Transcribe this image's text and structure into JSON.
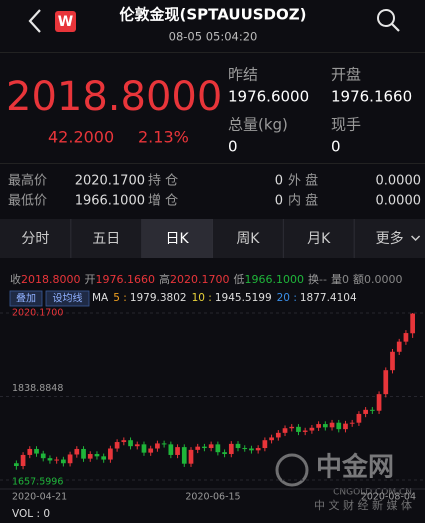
{
  "header": {
    "title": "伦敦金现(SPTAUUSDOZ)",
    "time": "08-05 05:04:20",
    "logo": "W"
  },
  "quote": {
    "price": "2018.8000",
    "change": "42.2000",
    "change_pct": "2.13%"
  },
  "summary": [
    {
      "label": "昨结",
      "value": "1976.6000"
    },
    {
      "label": "开盘",
      "value": "1976.1660"
    },
    {
      "label": "总量(kg)",
      "value": "0"
    },
    {
      "label": "现手",
      "value": "0"
    }
  ],
  "stats": [
    [
      {
        "label": "最高价",
        "value": "2020.1700"
      },
      {
        "label": "持 仓",
        "value": "0"
      },
      {
        "label": "外 盘",
        "value": "0.0000"
      }
    ],
    [
      {
        "label": "最低价",
        "value": "1966.1000"
      },
      {
        "label": "增 仓",
        "value": "0"
      },
      {
        "label": "内 盘",
        "value": "0.0000"
      }
    ]
  ],
  "tabs": [
    "分时",
    "五日",
    "日K",
    "周K",
    "月K",
    "更多"
  ],
  "selected_tab": 2,
  "info": [
    {
      "label": "收",
      "value": "2018.8000",
      "color": "#e8353a"
    },
    {
      "label": "开",
      "value": "1976.1660",
      "color": "#e8353a"
    },
    {
      "label": "高",
      "value": "2020.1700",
      "color": "#e8353a"
    },
    {
      "label": "低",
      "value": "1966.1000",
      "color": "#1fb53a"
    },
    {
      "label": "换",
      "value": "--",
      "color": "#888888"
    },
    {
      "label": "量",
      "value": "0",
      "color": "#888888"
    },
    {
      "label": "额",
      "value": "0.0000",
      "color": "#888888"
    }
  ],
  "buttons": [
    "叠加",
    "设均线"
  ],
  "ma": {
    "label": "MA",
    "items": [
      {
        "period": "5 :",
        "value": "1979.3802",
        "color": "#f0a020"
      },
      {
        "period": "10 :",
        "value": "1945.5199",
        "color": "#e8d23a"
      },
      {
        "period": "20 :",
        "value": "1877.4104",
        "color": "#3a8ee6"
      }
    ]
  },
  "kline": {
    "up_color": "#e8353a",
    "down_color": "#1fb53a",
    "ylim": [
      1657.5996,
      2020.17
    ],
    "yticks": [
      {
        "value": 2020.17,
        "label": "2020.1700"
      },
      {
        "value": 1838.8848,
        "label": "1838.8848"
      },
      {
        "value": 1657.5996,
        "label": "1657.5996"
      }
    ],
    "x_labels": [
      "2020-04-21",
      "2020-06-15",
      "2020-08-04"
    ],
    "open": [
      1694,
      1688,
      1712,
      1725,
      1715,
      1705,
      1700,
      1702,
      1694,
      1713,
      1725,
      1704,
      1714,
      1709,
      1702,
      1726,
      1740,
      1744,
      1731,
      1735,
      1717,
      1726,
      1737,
      1735,
      1712,
      1729,
      1693,
      1723,
      1730,
      1727,
      1735,
      1718,
      1714,
      1736,
      1727,
      1726,
      1722,
      1727,
      1744,
      1750,
      1760,
      1770,
      1773,
      1762,
      1765,
      1771,
      1779,
      1772,
      1782,
      1768,
      1780,
      1782,
      1801,
      1810,
      1808,
      1844,
      1896,
      1936,
      1958,
      1976.166
    ],
    "close": [
      1688,
      1712,
      1725,
      1715,
      1705,
      1700,
      1702,
      1694,
      1713,
      1725,
      1704,
      1714,
      1709,
      1702,
      1726,
      1740,
      1744,
      1731,
      1735,
      1717,
      1726,
      1737,
      1735,
      1712,
      1729,
      1693,
      1723,
      1730,
      1727,
      1735,
      1718,
      1714,
      1736,
      1727,
      1726,
      1722,
      1727,
      1744,
      1750,
      1760,
      1770,
      1773,
      1762,
      1765,
      1771,
      1779,
      1772,
      1782,
      1768,
      1780,
      1782,
      1801,
      1810,
      1808,
      1844,
      1896,
      1936,
      1958,
      1976.6,
      2018.8
    ],
    "high": [
      1700,
      1718,
      1731,
      1731,
      1721,
      1711,
      1708,
      1708,
      1719,
      1731,
      1731,
      1720,
      1720,
      1715,
      1732,
      1746,
      1750,
      1750,
      1741,
      1741,
      1732,
      1743,
      1743,
      1741,
      1735,
      1735,
      1729,
      1736,
      1736,
      1741,
      1741,
      1724,
      1742,
      1742,
      1733,
      1732,
      1733,
      1750,
      1756,
      1766,
      1776,
      1779,
      1779,
      1771,
      1777,
      1785,
      1785,
      1788,
      1788,
      1786,
      1788,
      1807,
      1816,
      1816,
      1850,
      1902,
      1942,
      1964,
      1983,
      2020.17
    ],
    "low": [
      1680,
      1681,
      1705,
      1708,
      1698,
      1693,
      1693,
      1687,
      1687,
      1706,
      1697,
      1697,
      1702,
      1695,
      1695,
      1719,
      1733,
      1724,
      1724,
      1710,
      1710,
      1719,
      1728,
      1705,
      1705,
      1686,
      1686,
      1716,
      1720,
      1720,
      1711,
      1707,
      1707,
      1720,
      1719,
      1715,
      1715,
      1720,
      1737,
      1743,
      1753,
      1763,
      1755,
      1755,
      1758,
      1764,
      1765,
      1765,
      1761,
      1761,
      1773,
      1775,
      1794,
      1801,
      1801,
      1837,
      1889,
      1929,
      1951,
      1966.1
    ],
    "volume_label": "VOL : 0"
  },
  "watermark": {
    "name": "中金网",
    "site": "CNGOLD.COM.CN",
    "slogan": "中 文 财 经 新 媒 体"
  }
}
